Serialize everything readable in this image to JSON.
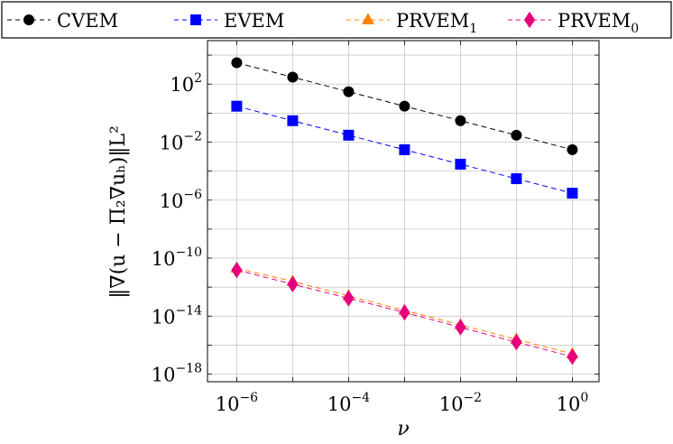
{
  "chart_data": {
    "type": "line",
    "xscale": "log",
    "yscale": "log",
    "grid": true,
    "legend_position": "top",
    "xlabel": "ν",
    "ylabel": "‖∇(u − Π₂∇uₕ)‖L²",
    "xlim": [
      3e-07,
      3.0
    ],
    "ylim": [
      3e-19,
      100000.0
    ],
    "x": [
      1e-06,
      1e-05,
      0.0001,
      0.001,
      0.01,
      0.1,
      1
    ],
    "x_ticks": [
      {
        "value": 1e-06,
        "base": "10",
        "exp": "−6"
      },
      {
        "value": 0.0001,
        "base": "10",
        "exp": "−4"
      },
      {
        "value": 0.01,
        "base": "10",
        "exp": "−2"
      },
      {
        "value": 1,
        "base": "10",
        "exp": "0"
      }
    ],
    "y_ticks": [
      {
        "value": 100.0,
        "base": "10",
        "exp": "2"
      },
      {
        "value": 0.01,
        "base": "10",
        "exp": "−2"
      },
      {
        "value": 1e-06,
        "base": "10",
        "exp": "−6"
      },
      {
        "value": 1e-10,
        "base": "10",
        "exp": "−10"
      },
      {
        "value": 1e-14,
        "base": "10",
        "exp": "−14"
      },
      {
        "value": 1e-18,
        "base": "10",
        "exp": "−18"
      }
    ],
    "series": [
      {
        "name": "CVEM",
        "sub": "",
        "color": "#000000",
        "marker": "circle",
        "values": [
          3000.0,
          300.0,
          30.0,
          3.0,
          0.3,
          0.03,
          0.003
        ]
      },
      {
        "name": "EVEM",
        "sub": "",
        "color": "#0000ff",
        "marker": "square",
        "values": [
          3.0,
          0.3,
          0.03,
          0.003,
          0.0003,
          3e-05,
          3e-06
        ]
      },
      {
        "name": "PRVEM",
        "sub": "1",
        "color": "#ff8000",
        "marker": "triangle",
        "values": [
          2e-11,
          2.5e-12,
          2.5e-13,
          2.5e-14,
          2.5e-15,
          2.5e-16,
          2.5e-17
        ]
      },
      {
        "name": "PRVEM",
        "sub": "0",
        "color": "#e6007e",
        "marker": "diamond",
        "values": [
          1.5e-11,
          1.6e-12,
          1.7e-13,
          1.8e-14,
          1.7e-15,
          1.6e-16,
          1.6e-17
        ]
      }
    ]
  }
}
